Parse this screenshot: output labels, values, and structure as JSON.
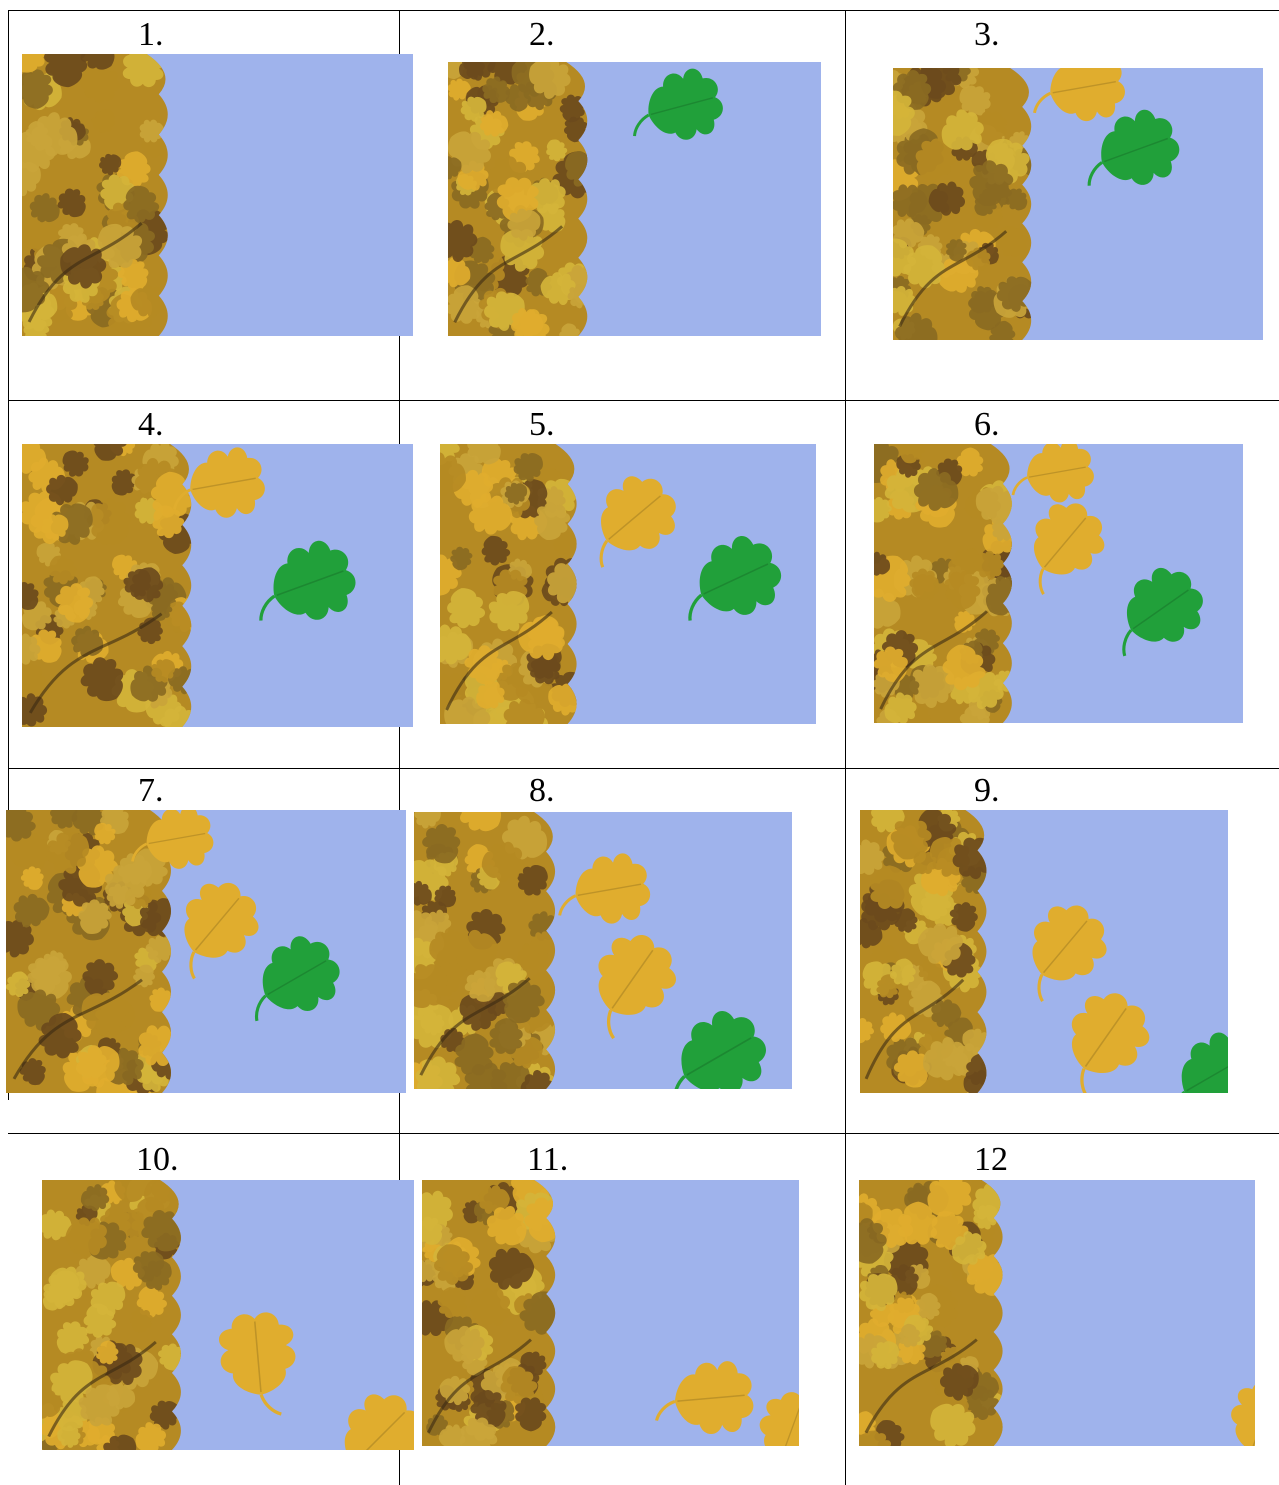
{
  "cells": [
    {
      "label": "1."
    },
    {
      "label": "2."
    },
    {
      "label": "3."
    },
    {
      "label": "4."
    },
    {
      "label": "5."
    },
    {
      "label": "6."
    },
    {
      "label": "7."
    },
    {
      "label": "8."
    },
    {
      "label": "9."
    },
    {
      "label": "10."
    },
    {
      "label": "11."
    },
    {
      "label": "12"
    }
  ],
  "colors": {
    "background": "#9fb3ec",
    "tree_dark": "#6b4a1c",
    "tree_mid": "#b58a23",
    "tree_light": "#d4b43a",
    "leaf_yellow": "#e0ad2e",
    "leaf_green": "#21a03a"
  }
}
